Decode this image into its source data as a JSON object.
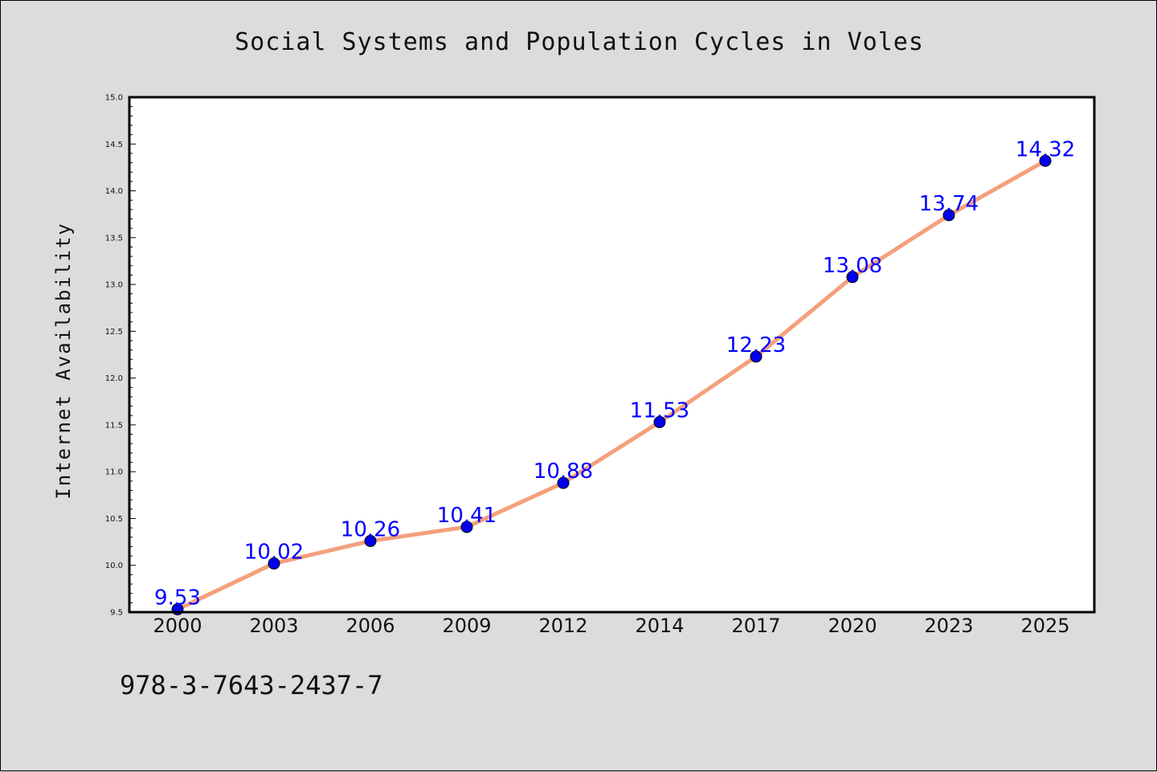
{
  "title": "Social Systems and Population Cycles in Voles",
  "footer_text": "978-3-7643-2437-7",
  "chart_data": {
    "type": "line",
    "categories": [
      "2000",
      "2003",
      "2006",
      "2009",
      "2012",
      "2014",
      "2017",
      "2020",
      "2023",
      "2025"
    ],
    "values": [
      9.53,
      10.02,
      10.26,
      10.41,
      10.88,
      11.53,
      12.23,
      13.08,
      13.74,
      14.32
    ],
    "data_labels": [
      "9.53",
      "10.02",
      "10.26",
      "10.41",
      "10.88",
      "11.53",
      "12.23",
      "13.08",
      "13.74",
      "14.32"
    ],
    "xlabel": "",
    "ylabel": "Internet Availability",
    "ylim": [
      9.5,
      15.0
    ],
    "yticks": [
      "9.5",
      "10.0",
      "10.5",
      "11.0",
      "11.5",
      "12.0",
      "12.5",
      "13.0",
      "13.5",
      "14.0",
      "14.5",
      "15.0"
    ],
    "grid": false,
    "line_color": "#f4a07c",
    "marker_color": "#0000ee",
    "label_color": "#0000ff",
    "background_color": "#dcdcdc",
    "plot_background": "#ffffff"
  }
}
